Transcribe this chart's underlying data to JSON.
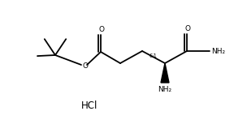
{
  "bg_color": "#ffffff",
  "line_color": "#000000",
  "line_width": 1.3,
  "font_size": 6.5,
  "figsize": [
    3.04,
    1.53
  ],
  "dpi": 100,
  "hcl_text": "HCl",
  "nh2_amide": "NH₂",
  "nh2_amine": "NH₂",
  "stereo_label": "&1",
  "o_label": "O"
}
